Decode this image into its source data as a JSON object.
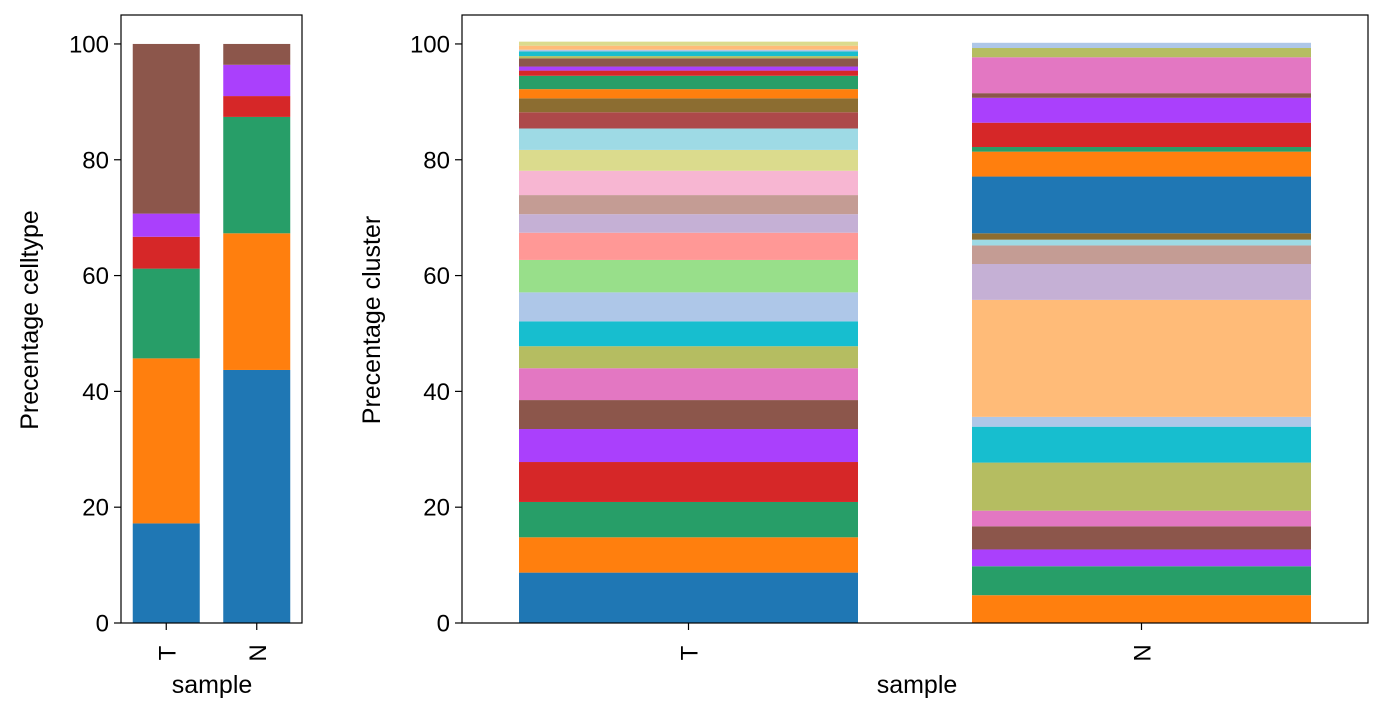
{
  "chart_data": [
    {
      "type": "bar",
      "stacked": true,
      "title": "",
      "xlabel": "sample",
      "ylabel": "Precentage celltype",
      "categories": [
        "T",
        "N"
      ],
      "ylim": [
        0,
        105
      ],
      "yticks": [
        0,
        20,
        40,
        60,
        80,
        100
      ],
      "grid": false,
      "legend": "none",
      "series": [
        {
          "color": "#1f77b4",
          "values": [
            17.2,
            43.7
          ]
        },
        {
          "color": "#ff7f0e",
          "values": [
            28.5,
            23.6
          ]
        },
        {
          "color": "#279e68",
          "values": [
            15.5,
            20.1
          ]
        },
        {
          "color": "#d62728",
          "values": [
            5.5,
            3.6
          ]
        },
        {
          "color": "#aa40fc",
          "values": [
            4.0,
            5.4
          ]
        },
        {
          "color": "#8c564b",
          "values": [
            29.3,
            3.6
          ]
        }
      ]
    },
    {
      "type": "bar",
      "stacked": true,
      "title": "",
      "xlabel": "sample",
      "ylabel": "Precentage cluster",
      "categories": [
        "T",
        "N"
      ],
      "ylim": [
        0,
        105
      ],
      "yticks": [
        0,
        20,
        40,
        60,
        80,
        100
      ],
      "grid": false,
      "legend": "none",
      "series": [
        {
          "color": "#1f77b4",
          "values": [
            8.7,
            0.0
          ]
        },
        {
          "color": "#ff7f0e",
          "values": [
            6.1,
            4.8
          ]
        },
        {
          "color": "#279e68",
          "values": [
            6.1,
            5.0
          ]
        },
        {
          "color": "#aa40fc",
          "values": [
            0.0,
            2.9
          ]
        },
        {
          "color": "#8c564b",
          "values": [
            0.0,
            4.0
          ]
        },
        {
          "color": "#e377c2",
          "values": [
            0.0,
            2.7
          ]
        },
        {
          "color": "#b5bd61",
          "values": [
            0.0,
            8.3
          ]
        },
        {
          "color": "#17becf",
          "values": [
            0.0,
            6.2
          ]
        },
        {
          "color": "#aec7e8",
          "values": [
            0.0,
            1.7
          ]
        },
        {
          "color": "#ffbb78",
          "values": [
            0.0,
            20.2
          ]
        },
        {
          "color": "#c5b0d5",
          "values": [
            0.0,
            6.2
          ]
        },
        {
          "color": "#c49c94",
          "values": [
            0.0,
            3.2
          ]
        },
        {
          "color": "#9edae5",
          "values": [
            0.0,
            1.0
          ]
        },
        {
          "color": "#8c6d31",
          "values": [
            0.0,
            1.1
          ]
        },
        {
          "color": "#1f77b4",
          "values": [
            0.0,
            9.8
          ]
        },
        {
          "color": "#ff7f0e",
          "values": [
            0.0,
            4.3
          ]
        },
        {
          "color": "#279e68",
          "values": [
            0.0,
            0.8
          ]
        },
        {
          "color": "#d62728",
          "values": [
            6.9,
            4.2
          ]
        },
        {
          "color": "#aa40fc",
          "values": [
            5.7,
            4.3
          ]
        },
        {
          "color": "#8c564b",
          "values": [
            5.0,
            0.8
          ]
        },
        {
          "color": "#e377c2",
          "values": [
            5.5,
            6.2
          ]
        },
        {
          "color": "#b5bd61",
          "values": [
            3.8,
            1.6
          ]
        },
        {
          "color": "#17becf",
          "values": [
            4.3,
            0.0
          ]
        },
        {
          "color": "#aec7e8",
          "values": [
            5.0,
            0.9
          ]
        },
        {
          "color": "#98df8a",
          "values": [
            5.6,
            0.0
          ]
        },
        {
          "color": "#ff9896",
          "values": [
            4.7,
            0.0
          ]
        },
        {
          "color": "#c5b0d5",
          "values": [
            3.2,
            0.0
          ]
        },
        {
          "color": "#c49c94",
          "values": [
            3.3,
            0.0
          ]
        },
        {
          "color": "#f7b6d2",
          "values": [
            4.2,
            0.0
          ]
        },
        {
          "color": "#dbdb8d",
          "values": [
            3.6,
            0.0
          ]
        },
        {
          "color": "#9edae5",
          "values": [
            3.7,
            0.0
          ]
        },
        {
          "color": "#ad494a",
          "values": [
            2.8,
            0.0
          ]
        },
        {
          "color": "#8c6d31",
          "values": [
            2.4,
            0.0
          ]
        },
        {
          "color": "#ff7f0e",
          "values": [
            1.6,
            0.0
          ]
        },
        {
          "color": "#279e68",
          "values": [
            2.3,
            0.0
          ]
        },
        {
          "color": "#d62728",
          "values": [
            0.9,
            0.0
          ]
        },
        {
          "color": "#aa40fc",
          "values": [
            0.7,
            0.0
          ]
        },
        {
          "color": "#8c564b",
          "values": [
            1.4,
            0.0
          ]
        },
        {
          "color": "#b5bd61",
          "values": [
            0.4,
            0.0
          ]
        },
        {
          "color": "#17becf",
          "values": [
            0.8,
            0.0
          ]
        },
        {
          "color": "#aec7e8",
          "values": [
            0.3,
            0.0
          ]
        },
        {
          "color": "#ffbb78",
          "values": [
            0.7,
            0.0
          ]
        },
        {
          "color": "#dbdb8d",
          "values": [
            0.7,
            0.0
          ]
        }
      ]
    }
  ]
}
